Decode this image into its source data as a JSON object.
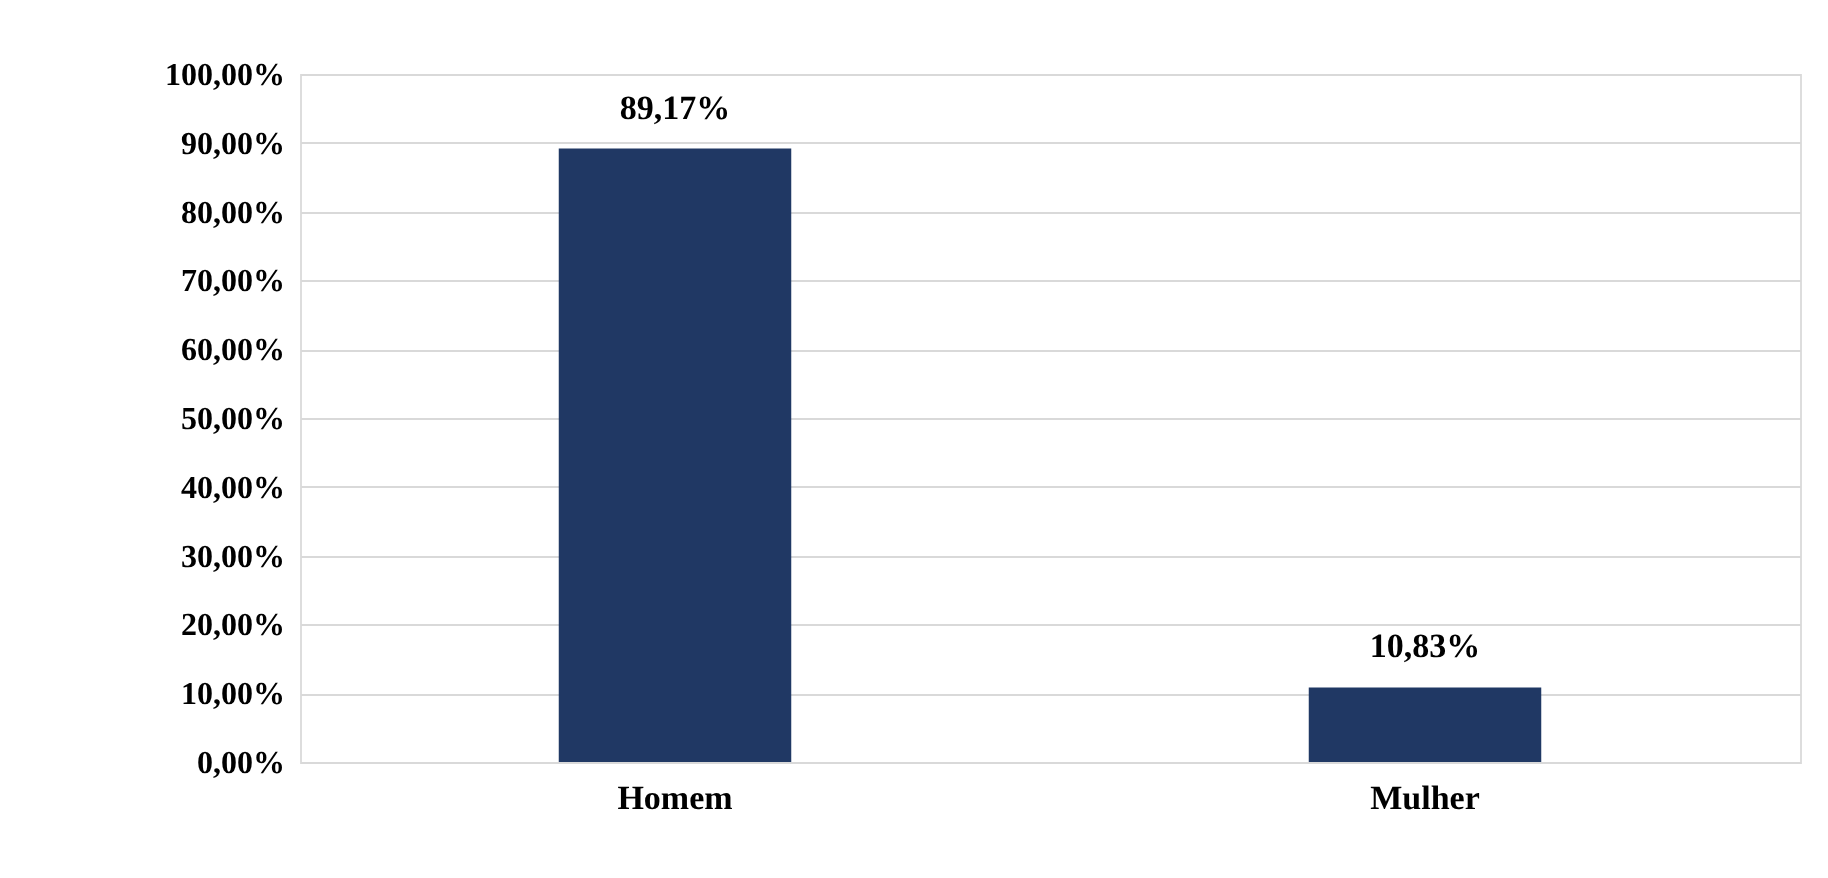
{
  "chart_data": {
    "type": "bar",
    "categories": [
      "Homem",
      "Mulher"
    ],
    "values": [
      89.17,
      10.83
    ],
    "value_labels": [
      "89,17%",
      "10,83%"
    ],
    "color": "#203864",
    "ylim": [
      0,
      100
    ],
    "yticks": [
      {
        "value": 0,
        "label": "0,00%"
      },
      {
        "value": 10,
        "label": "10,00%"
      },
      {
        "value": 20,
        "label": "20,00%"
      },
      {
        "value": 30,
        "label": "30,00%"
      },
      {
        "value": 40,
        "label": "40,00%"
      },
      {
        "value": 50,
        "label": "50,00%"
      },
      {
        "value": 60,
        "label": "60,00%"
      },
      {
        "value": 70,
        "label": "70,00%"
      },
      {
        "value": 80,
        "label": "80,00%"
      },
      {
        "value": 90,
        "label": "90,00%"
      },
      {
        "value": 100,
        "label": "100,00%"
      }
    ],
    "grid": "y"
  }
}
